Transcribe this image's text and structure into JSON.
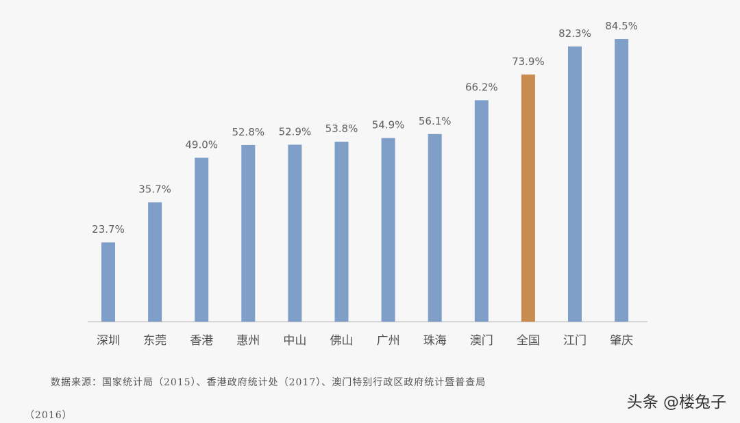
{
  "chart_data": {
    "type": "bar",
    "categories": [
      "深圳",
      "东莞",
      "香港",
      "惠州",
      "中山",
      "佛山",
      "广州",
      "珠海",
      "澳门",
      "全国",
      "江门",
      "肇庆"
    ],
    "values": [
      23.7,
      35.7,
      49.0,
      52.8,
      52.9,
      53.8,
      54.9,
      56.1,
      66.2,
      73.9,
      82.3,
      84.5
    ],
    "value_labels": [
      "23.7%",
      "35.7%",
      "49.0%",
      "52.8%",
      "52.9%",
      "53.8%",
      "54.9%",
      "56.1%",
      "66.2%",
      "73.9%",
      "82.3%",
      "84.5%"
    ],
    "highlight_index": 9,
    "colors": {
      "bar": "#7f9fc9",
      "highlight": "#c98c50",
      "axis": "#d6d6d6"
    },
    "ylim": [
      0,
      84.5
    ],
    "grid": false,
    "legend": "none"
  },
  "source_line1": "数据来源：国家统计局（2015）、香港政府统计处（2017）、澳门特别行政区政府统计暨普查局",
  "source_line2": "（2016）",
  "watermark": "头条 @楼兔子"
}
